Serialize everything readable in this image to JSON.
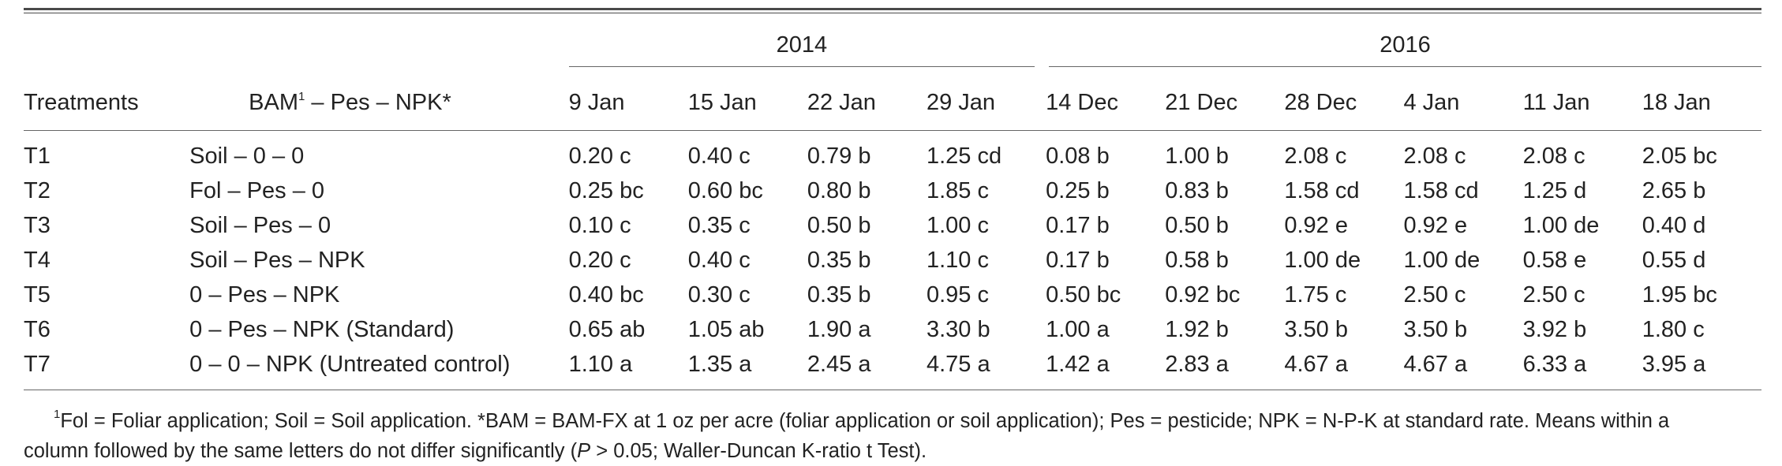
{
  "table": {
    "years": [
      "2014",
      "2016"
    ],
    "headers": {
      "treatments": "Treatments",
      "combo_prefix": "BAM",
      "combo_sup": "1",
      "combo_suffix": " – Pes – NPK*",
      "dates_2014": [
        "9 Jan",
        "15 Jan",
        "22 Jan",
        "29 Jan"
      ],
      "dates_2016": [
        "14 Dec",
        "21 Dec",
        "28 Dec",
        "4 Jan",
        "11 Jan",
        "18 Jan"
      ]
    },
    "rows": [
      {
        "treatment": "T1",
        "combo": "Soil – 0 – 0",
        "values": [
          "0.20 c",
          "0.40 c",
          "0.79 b",
          "1.25 cd",
          "0.08 b",
          "1.00 b",
          "2.08 c",
          "2.08 c",
          "2.08 c",
          "2.05 bc"
        ]
      },
      {
        "treatment": "T2",
        "combo": "Fol – Pes – 0",
        "values": [
          "0.25 bc",
          "0.60 bc",
          "0.80 b",
          "1.85 c",
          "0.25 b",
          "0.83 b",
          "1.58 cd",
          "1.58 cd",
          "1.25 d",
          "2.65 b"
        ]
      },
      {
        "treatment": "T3",
        "combo": "Soil – Pes – 0",
        "values": [
          "0.10 c",
          "0.35 c",
          "0.50 b",
          "1.00 c",
          "0.17 b",
          "0.50 b",
          "0.92 e",
          "0.92 e",
          "1.00 de",
          "0.40 d"
        ]
      },
      {
        "treatment": "T4",
        "combo": "Soil – Pes – NPK",
        "values": [
          "0.20 c",
          "0.40 c",
          "0.35 b",
          "1.10 c",
          "0.17 b",
          "0.58 b",
          "1.00 de",
          "1.00 de",
          "0.58 e",
          "0.55 d"
        ]
      },
      {
        "treatment": "T5",
        "combo": "0 – Pes – NPK",
        "values": [
          "0.40 bc",
          "0.30 c",
          "0.35 b",
          "0.95 c",
          "0.50 bc",
          "0.92 bc",
          "1.75 c",
          "2.50 c",
          "2.50 c",
          "1.95 bc"
        ]
      },
      {
        "treatment": "T6",
        "combo": "0 – Pes – NPK (Standard)",
        "values": [
          "0.65 ab",
          "1.05 ab",
          "1.90 a",
          "3.30 b",
          "1.00 a",
          "1.92 b",
          "3.50 b",
          "3.50 b",
          "3.92 b",
          "1.80 c"
        ]
      },
      {
        "treatment": "T7",
        "combo": "0 – 0 – NPK (Untreated control)",
        "values": [
          "1.10 a",
          "1.35 a",
          "2.45 a",
          "4.75 a",
          "1.42 a",
          "2.83 a",
          "4.67 a",
          "4.67 a",
          "6.33 a",
          "3.95 a"
        ]
      }
    ]
  },
  "footnote": {
    "sup": "1",
    "text_part1": "Fol = Foliar application; Soil = Soil application. *BAM = BAM-FX at 1 oz per acre (foliar application or soil application); Pes = pesticide; NPK = N-P-K at standard rate. Means within a",
    "text_part2_prefix": "column followed by the same letters do not differ significantly (",
    "text_p": "P",
    "text_part2_suffix": " > 0.05; Waller-Duncan K-ratio t Test)."
  }
}
